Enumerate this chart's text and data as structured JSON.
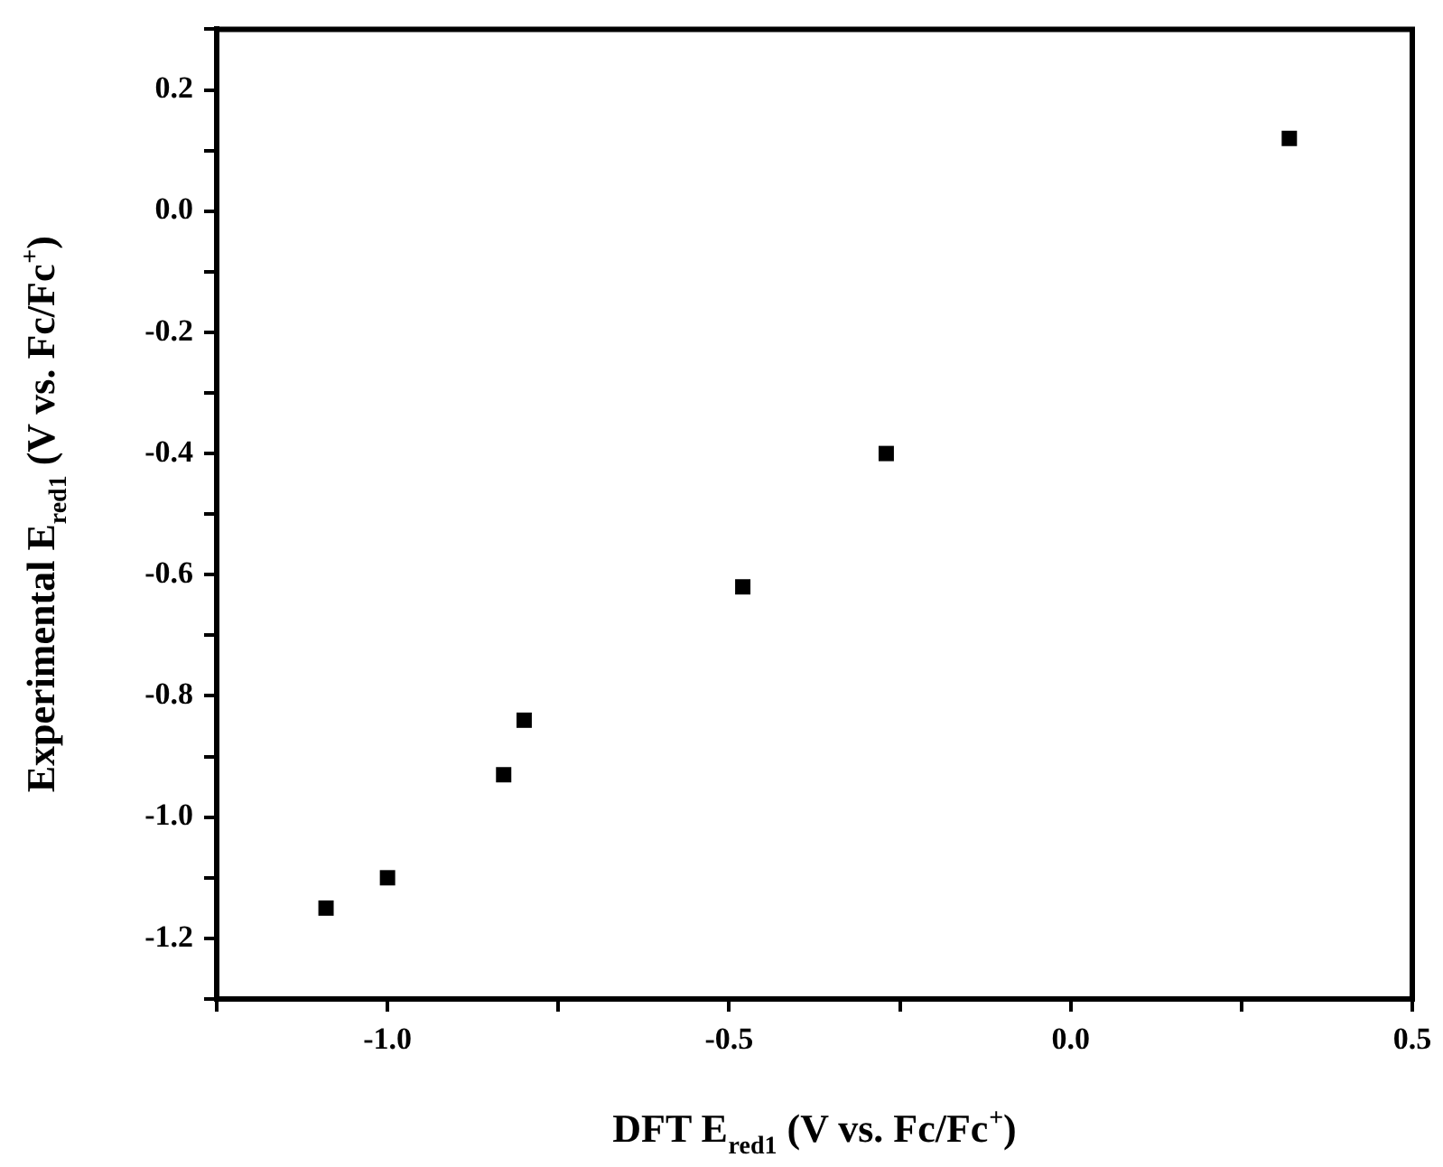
{
  "chart_data": {
    "type": "scatter",
    "xlabel": "DFT E$_{red1}$ (V vs. Fc/Fc$^{+}$)",
    "ylabel": "Experimental E$_{red1}$ (V vs. Fc/Fc$^{+}$)",
    "x": [
      -1.09,
      -1.0,
      -0.83,
      -0.8,
      -0.48,
      -0.27,
      0.32
    ],
    "series": [
      {
        "color": "#000000",
        "values": [
          -1.15,
          -1.1,
          -0.93,
          -0.84,
          -0.62,
          -0.4,
          0.12
        ]
      }
    ],
    "marker": "square",
    "legend": false,
    "grid": false,
    "xlim": [
      -1.25,
      0.5
    ],
    "xticks": [
      {
        "value": -1.25,
        "label": null
      },
      {
        "value": -1,
        "label": "-1.0"
      },
      {
        "value": -0.75,
        "label": null
      },
      {
        "value": -0.5,
        "label": "-0.5"
      },
      {
        "value": -0.25,
        "label": null
      },
      {
        "value": 0,
        "label": "0.0"
      },
      {
        "value": 0.25,
        "label": null
      },
      {
        "value": 0.5,
        "label": "0.5"
      }
    ],
    "ylim": [
      -1.3,
      0.3
    ],
    "yticks": [
      {
        "value": -1.3,
        "label": null
      },
      {
        "value": -1.2,
        "label": "-1.2"
      },
      {
        "value": -1.1,
        "label": null
      },
      {
        "value": -1,
        "label": "-1.0"
      },
      {
        "value": -0.9,
        "label": null
      },
      {
        "value": -0.8,
        "label": "-0.8"
      },
      {
        "value": -0.7,
        "label": null
      },
      {
        "value": -0.6,
        "label": "-0.6"
      },
      {
        "value": -0.5,
        "label": null
      },
      {
        "value": -0.4,
        "label": "-0.4"
      },
      {
        "value": -0.3,
        "label": null
      },
      {
        "value": -0.2,
        "label": "-0.2"
      },
      {
        "value": -0.1,
        "label": null
      },
      {
        "value": 0,
        "label": "0.0"
      },
      {
        "value": 0.1,
        "label": null
      },
      {
        "value": 0.2,
        "label": "0.2"
      },
      {
        "value": 0.3,
        "label": null
      }
    ]
  }
}
